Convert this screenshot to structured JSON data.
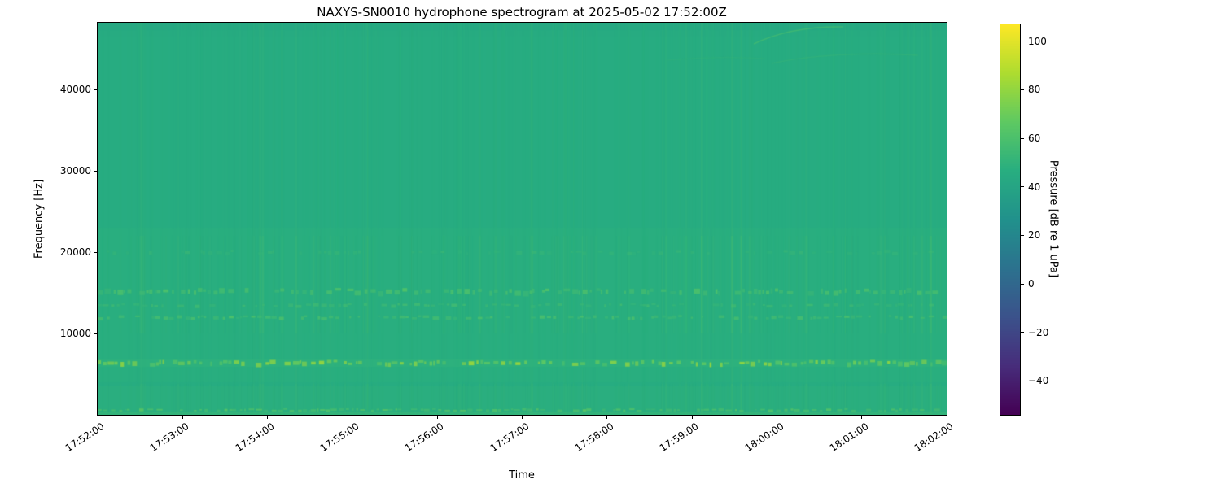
{
  "chart_data": {
    "type": "heatmap",
    "variant": "spectrogram",
    "title": "NAXYS-SN0010 hydrophone spectrogram at 2025-05-02 17:52:00Z",
    "xlabel": "Time",
    "ylabel": "Frequency [Hz]",
    "colormap": "viridis",
    "grid": false,
    "x_ticks": [
      "17:52:00",
      "17:53:00",
      "17:54:00",
      "17:55:00",
      "17:56:00",
      "17:57:00",
      "17:58:00",
      "17:59:00",
      "18:00:00",
      "18:01:00",
      "18:02:00"
    ],
    "time_span_seconds": 600,
    "y_ticks": [
      {
        "value": 10000,
        "label": "10000"
      },
      {
        "value": 20000,
        "label": "20000"
      },
      {
        "value": 30000,
        "label": "30000"
      },
      {
        "value": 40000,
        "label": "40000"
      }
    ],
    "ylim": [
      0,
      48200
    ],
    "colorbar": {
      "label": "Pressure [dB re 1 uPa]",
      "vmin": -54,
      "vmax": 107,
      "ticks": [
        {
          "value": 100,
          "label": "100"
        },
        {
          "value": 80,
          "label": "80"
        },
        {
          "value": 60,
          "label": "60"
        },
        {
          "value": 40,
          "label": "40"
        },
        {
          "value": 20,
          "label": "20"
        },
        {
          "value": 0,
          "label": "0"
        },
        {
          "value": -20,
          "label": "−20"
        },
        {
          "value": -40,
          "label": "−40"
        }
      ]
    },
    "content": {
      "background_level_db": 45,
      "midband_background_db": 48,
      "midband_hz_range": [
        4000,
        23000
      ],
      "striations": {
        "count": 300,
        "boost_db_range": [
          1.5,
          16
        ],
        "description": "dense vertical broadband transient lines across the whole record"
      },
      "tonal_bands": [
        {
          "center_hz": 6400,
          "half_bandwidth_hz": 350,
          "db_range": [
            62,
            86
          ],
          "density": 0.8,
          "alpha": 0.9,
          "pattern": "bright yellow-green intermittent dashes"
        },
        {
          "center_hz": 15200,
          "half_bandwidth_hz": 400,
          "db_range": [
            54,
            68
          ],
          "density": 0.7,
          "alpha": 0.75,
          "pattern": "intermittent dashes"
        },
        {
          "center_hz": 13500,
          "half_bandwidth_hz": 250,
          "db_range": [
            52,
            62
          ],
          "density": 0.6,
          "alpha": 0.7,
          "pattern": "intermittent dashes"
        },
        {
          "center_hz": 12000,
          "half_bandwidth_hz": 250,
          "db_range": [
            53,
            66
          ],
          "density": 0.65,
          "alpha": 0.75,
          "pattern": "intermittent dashes"
        },
        {
          "center_hz": 20000,
          "half_bandwidth_hz": 300,
          "db_range": [
            50,
            57
          ],
          "density": 0.5,
          "alpha": 0.5,
          "pattern": "faint sparse dashes"
        }
      ],
      "low_freq_band": {
        "top_hz": 3500,
        "base_db": 50,
        "edge_line_hz": 600,
        "edge_db_range": [
          56,
          70
        ],
        "description": "brighter noisy band below 3.5 kHz with bright dashed line near bottom edge"
      },
      "sweep_arcs": {
        "freq_hz_range": [
          43500,
          47800
        ],
        "near_time": "18:00:00",
        "db": 60,
        "description": "faint upward-curving frequency sweep traces in upper right corner"
      }
    }
  }
}
